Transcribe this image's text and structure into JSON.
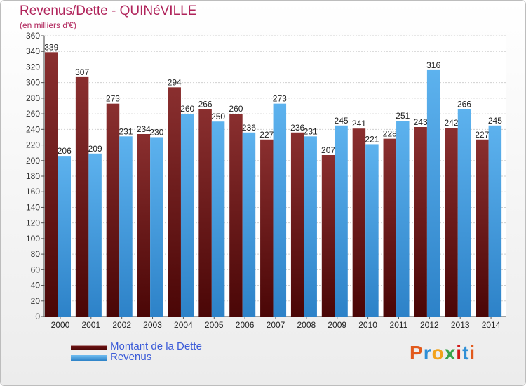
{
  "header": {
    "title": "Revenus/Dette - QUINéVILLE",
    "subtitle": "(en milliers d'€)"
  },
  "legend": [
    {
      "label": "Montant de la Dette",
      "color": "#6e1414"
    },
    {
      "label": "Revenus",
      "color": "#4da3e4"
    }
  ],
  "logo": {
    "text": "Proxiti",
    "colors": [
      "#e25a1c",
      "#2e8fd6",
      "#f2a21a",
      "#3aa24a",
      "#d21a1a",
      "#2e8fd6",
      "#e25a1c"
    ]
  },
  "chart_data": {
    "type": "bar",
    "title": "Revenus/Dette - QUINéVILLE",
    "ylabel": "(en milliers d'€)",
    "xlabel": "",
    "ylim": [
      0,
      360
    ],
    "ytick_step": 20,
    "grid": true,
    "legend_position": "bottom-left",
    "categories": [
      "2000",
      "2001",
      "2002",
      "2003",
      "2004",
      "2005",
      "2006",
      "2007",
      "2008",
      "2009",
      "2010",
      "2011",
      "2012",
      "2013",
      "2014"
    ],
    "series": [
      {
        "name": "Montant de la Dette",
        "color": "#6e1414",
        "values": [
          339,
          307,
          273,
          234,
          294,
          266,
          260,
          227,
          236,
          207,
          241,
          228,
          243,
          242,
          227
        ]
      },
      {
        "name": "Revenus",
        "color": "#4da3e4",
        "values": [
          206,
          209,
          231,
          230,
          260,
          250,
          236,
          273,
          231,
          245,
          221,
          251,
          316,
          266,
          245
        ]
      }
    ]
  }
}
